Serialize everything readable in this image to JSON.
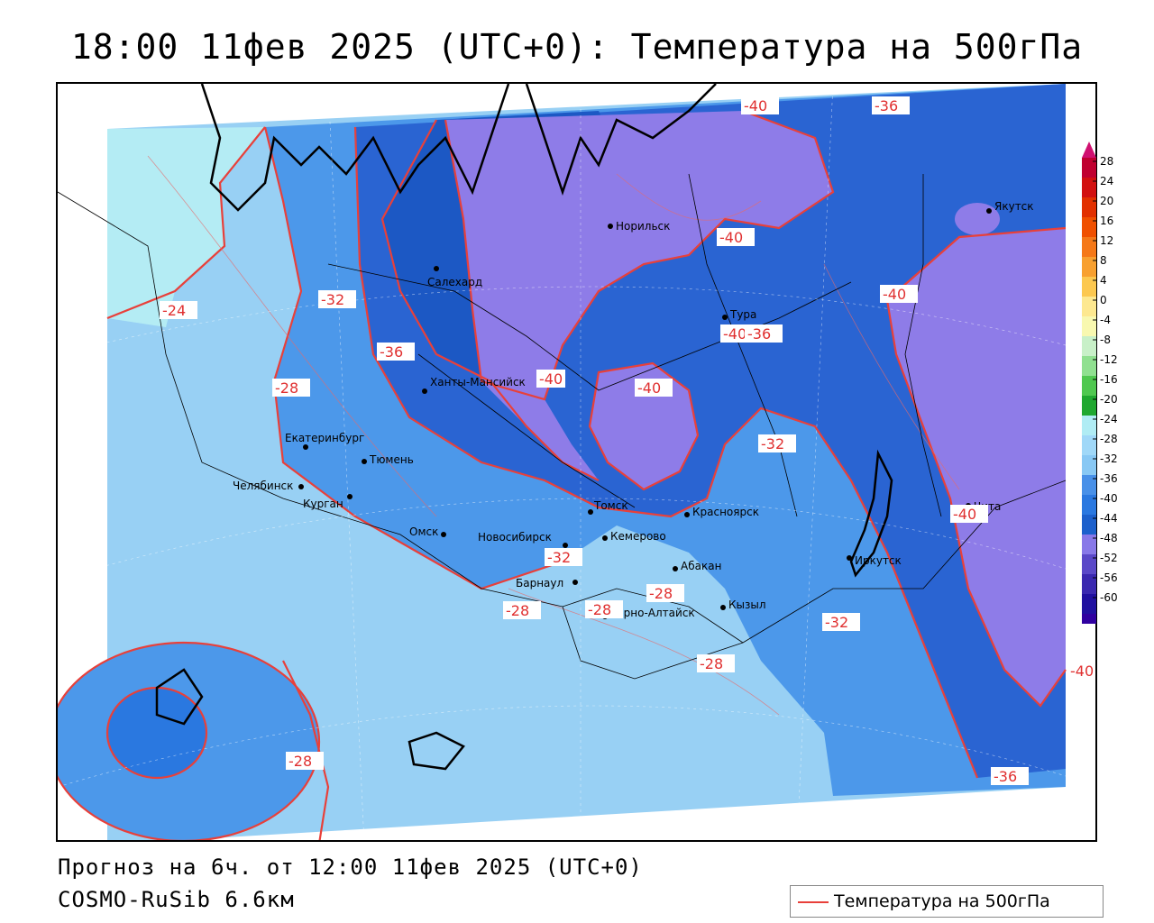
{
  "title": "18:00 11фев 2025 (UTC+0): Температура на 500гПа",
  "footer": {
    "forecast": "Прогноз на 6ч. от 12:00 11фев 2025 (UTC+0)",
    "model": "COSMO-RuSib 6.6км"
  },
  "legend": {
    "label": "Температура на 500гПа",
    "line_color": "#e8403a"
  },
  "colorbar": {
    "ticks": [
      "28",
      "24",
      "20",
      "16",
      "12",
      "8",
      "4",
      "0",
      "-4",
      "-8",
      "-12",
      "-16",
      "-20",
      "-24",
      "-28",
      "-32",
      "-36",
      "-40",
      "-44",
      "-48",
      "-52",
      "-56",
      "-60"
    ],
    "colors": [
      "#c00030",
      "#d21010",
      "#e23000",
      "#f05000",
      "#f57818",
      "#f8a030",
      "#fcc850",
      "#fde890",
      "#f8f8b0",
      "#c8f0c8",
      "#90e090",
      "#50c850",
      "#20a830",
      "#b0ecf4",
      "#a0d8f8",
      "#88c8f4",
      "#4890e8",
      "#2a78e0",
      "#1c60cc",
      "#8878e8",
      "#5a48c8",
      "#3a28b0",
      "#2010a0",
      "#3000a0"
    ],
    "top_arrow_color": "#d01070",
    "bottom_arrow_color": "#9010c0"
  },
  "palette": {
    "t_minus_24": "#b4ecf4",
    "t_minus_28": "#98d0f4",
    "t_minus_32": "#4c98ea",
    "t_minus_36": "#2a78e0",
    "t_minus_40": "#2a64d2",
    "t_minus_44": "#8e7ce8",
    "contour": "#e8403a",
    "coast": "#000000",
    "borders": "#000000"
  },
  "cities": [
    {
      "name": "Норильск"
    },
    {
      "name": "Салехард"
    },
    {
      "name": "Якутск"
    },
    {
      "name": "Тура"
    },
    {
      "name": "Ханты-Мансийск"
    },
    {
      "name": "Екатеринбург"
    },
    {
      "name": "Тюмень"
    },
    {
      "name": "Челябинск"
    },
    {
      "name": "Курган"
    },
    {
      "name": "Омск"
    },
    {
      "name": "Новосибирск"
    },
    {
      "name": "Томск"
    },
    {
      "name": "Кемерово"
    },
    {
      "name": "Красноярск"
    },
    {
      "name": "Барнаул"
    },
    {
      "name": "Абакан"
    },
    {
      "name": "Горно-Алтайск"
    },
    {
      "name": "Кызыл"
    },
    {
      "name": "Иркутск"
    },
    {
      "name": "Чита"
    }
  ],
  "contour_labels": [
    "-40",
    "-36",
    "-40",
    "-40",
    "-40",
    "-32",
    "-24",
    "-36",
    "-28",
    "-40",
    "-40",
    "-36",
    "-32",
    "-40",
    "-32",
    "-28",
    "-28",
    "-28",
    "-32",
    "-28",
    "-40",
    "-36",
    "-28"
  ]
}
